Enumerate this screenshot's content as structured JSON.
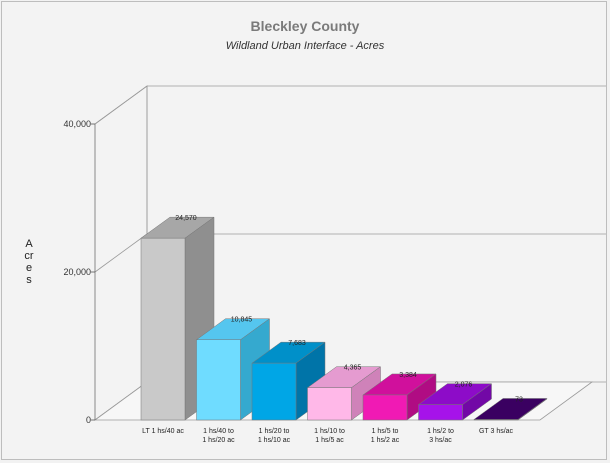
{
  "chart_data": {
    "type": "bar",
    "title": "Bleckley County",
    "subtitle": "Wildland Urban Interface - Acres",
    "ylabel": "Acres",
    "ylim": [
      0,
      40000
    ],
    "yticks": [
      "0",
      "20,000",
      "40,000"
    ],
    "categories": [
      [
        "LT 1 hs/40 ac"
      ],
      [
        "1 hs/40 to",
        "1 hs/20 ac"
      ],
      [
        "1 hs/20 to",
        "1 hs/10 ac"
      ],
      [
        "1 hs/10 to",
        "1 hs/5 ac"
      ],
      [
        "1 hs/5 to",
        "1 hs/2 ac"
      ],
      [
        "1 hs/2 to",
        "3 hs/ac"
      ],
      [
        "GT 3 hs/ac"
      ]
    ],
    "values": [
      24570,
      10845,
      7683,
      4365,
      3384,
      2076,
      73
    ],
    "value_labels": [
      "24,570",
      "10,845",
      "7,683",
      "4,365",
      "3,384",
      "2,076",
      "73"
    ],
    "colors": [
      "#c9c9c9",
      "#6fdcff",
      "#00a6e6",
      "#ffb8e8",
      "#f01ab4",
      "#a613ea",
      "#4b0077"
    ],
    "side_colors": [
      "#8f8f8f",
      "#35a9cf",
      "#0074a8",
      "#cf82b9",
      "#b00c83",
      "#7208a6",
      "#2c0049"
    ],
    "top_colors": [
      "#a7a7a7",
      "#55c6ef",
      "#0090c9",
      "#e59bd0",
      "#d0109c",
      "#8d0cc8",
      "#3a0061"
    ],
    "grid": true,
    "legend": "none"
  }
}
